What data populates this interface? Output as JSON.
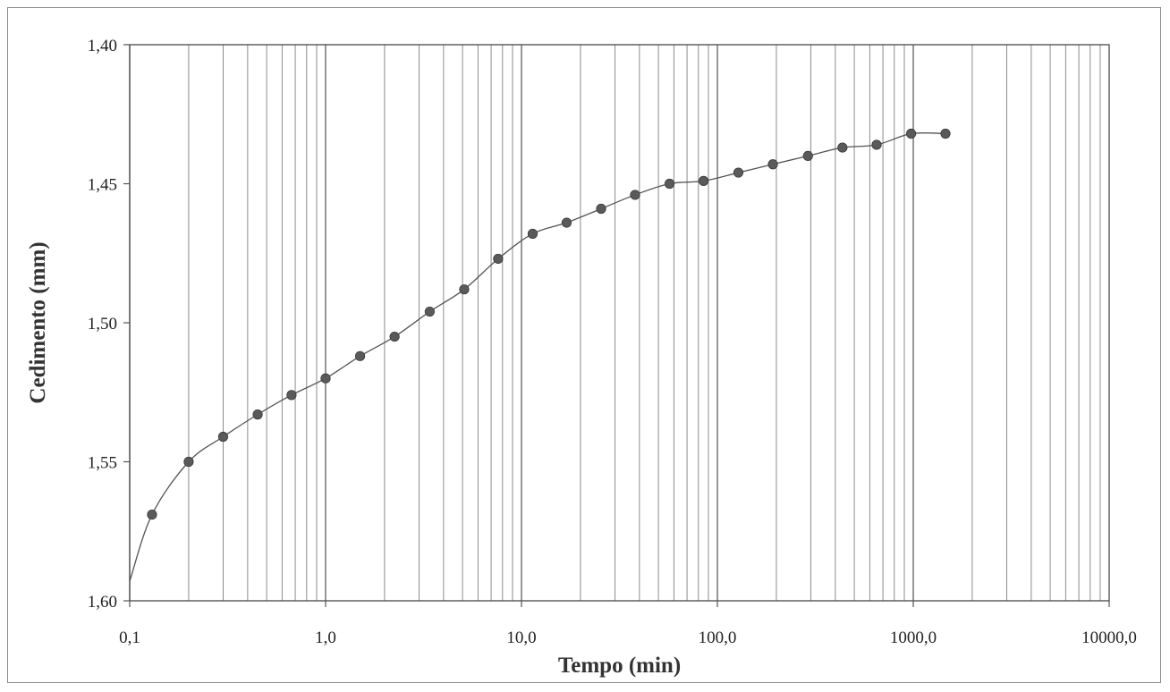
{
  "chart_data": {
    "type": "line",
    "title": "",
    "xlabel": "Tempo (min)",
    "ylabel": "Cedimento (mm)",
    "x_scale": "log",
    "xlim": [
      0.1,
      10000
    ],
    "ylim": [
      1.4,
      1.6
    ],
    "y_inverted": true,
    "grid": "vertical log gridlines",
    "x_ticks": [
      "0,1",
      "1,0",
      "10,0",
      "100,0",
      "1000,0",
      "10000,0"
    ],
    "y_ticks": [
      "1,40",
      "1,45",
      "1,50",
      "1,55",
      "1,60"
    ],
    "marker_color": "#5a5a5a",
    "line_color": "#555555",
    "series": [
      {
        "x": [
          0.13,
          0.2,
          0.3,
          0.45,
          0.67,
          1.0,
          1.5,
          2.25,
          3.4,
          5.1,
          7.6,
          11.4,
          17,
          25.5,
          38,
          57,
          85,
          128,
          192,
          290,
          435,
          650,
          975,
          1460
        ],
        "y": [
          1.569,
          1.55,
          1.541,
          1.533,
          1.526,
          1.52,
          1.512,
          1.505,
          1.496,
          1.488,
          1.477,
          1.468,
          1.464,
          1.459,
          1.454,
          1.45,
          1.449,
          1.446,
          1.443,
          1.44,
          1.437,
          1.436,
          1.432,
          1.432
        ]
      }
    ]
  }
}
